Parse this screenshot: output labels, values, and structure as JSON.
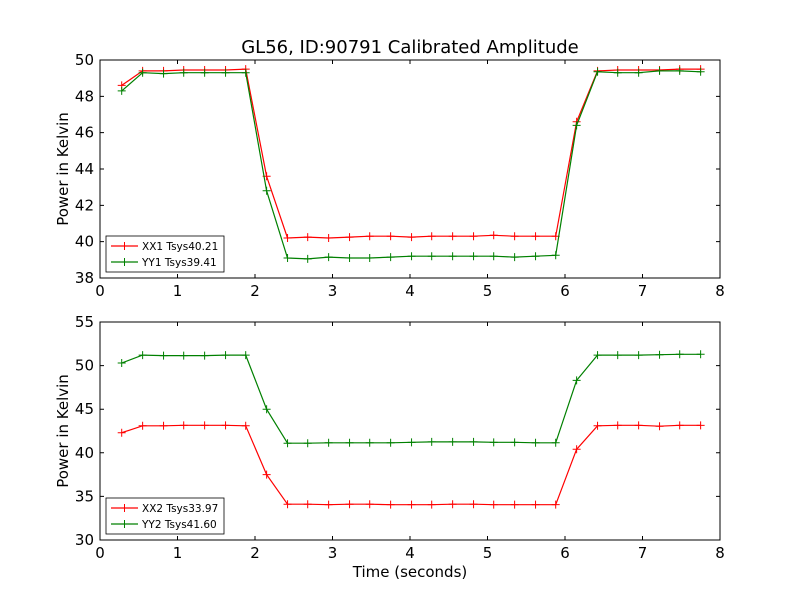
{
  "figure": {
    "title": "GL56, ID:90791 Calibrated Amplitude"
  },
  "chart_data": [
    {
      "type": "line",
      "title": "GL56, ID:90791 Calibrated Amplitude",
      "xlabel": "",
      "ylabel": "Power in Kelvin",
      "xlim": [
        0,
        8
      ],
      "ylim": [
        38,
        50
      ],
      "xticks": [
        0,
        1,
        2,
        3,
        4,
        5,
        6,
        7,
        8
      ],
      "yticks": [
        38,
        40,
        42,
        44,
        46,
        48,
        50
      ],
      "legend_position": "lower-left",
      "x": [
        0.28,
        0.55,
        0.82,
        1.08,
        1.35,
        1.62,
        1.88,
        2.15,
        2.42,
        2.68,
        2.95,
        3.22,
        3.48,
        3.75,
        4.02,
        4.28,
        4.55,
        4.82,
        5.08,
        5.35,
        5.62,
        5.88,
        6.15,
        6.42,
        6.68,
        6.95,
        7.22,
        7.48,
        7.75
      ],
      "series": [
        {
          "name": "XX1 Tsys40.21",
          "color": "#ff0000",
          "values": [
            48.6,
            49.4,
            49.4,
            49.45,
            49.45,
            49.45,
            49.5,
            43.6,
            40.2,
            40.25,
            40.2,
            40.25,
            40.3,
            40.3,
            40.25,
            40.3,
            40.3,
            40.3,
            40.35,
            40.3,
            40.3,
            40.3,
            46.6,
            49.4,
            49.45,
            49.45,
            49.45,
            49.5,
            49.5
          ]
        },
        {
          "name": "YY1 Tsys39.41",
          "color": "#008000",
          "values": [
            48.3,
            49.3,
            49.25,
            49.3,
            49.3,
            49.3,
            49.3,
            42.8,
            39.1,
            39.05,
            39.15,
            39.1,
            39.1,
            39.15,
            39.2,
            39.2,
            39.2,
            39.2,
            39.2,
            39.15,
            39.2,
            39.25,
            46.4,
            49.35,
            49.3,
            49.3,
            49.4,
            49.4,
            49.35
          ]
        }
      ]
    },
    {
      "type": "line",
      "title": "",
      "xlabel": "Time (seconds)",
      "ylabel": "Power in Kelvin",
      "xlim": [
        0,
        8
      ],
      "ylim": [
        30,
        55
      ],
      "xticks": [
        0,
        1,
        2,
        3,
        4,
        5,
        6,
        7,
        8
      ],
      "yticks": [
        30,
        35,
        40,
        45,
        50,
        55
      ],
      "legend_position": "lower-left",
      "x": [
        0.28,
        0.55,
        0.82,
        1.08,
        1.35,
        1.62,
        1.88,
        2.15,
        2.42,
        2.68,
        2.95,
        3.22,
        3.48,
        3.75,
        4.02,
        4.28,
        4.55,
        4.82,
        5.08,
        5.35,
        5.62,
        5.88,
        6.15,
        6.42,
        6.68,
        6.95,
        7.22,
        7.48,
        7.75
      ],
      "series": [
        {
          "name": "XX2 Tsys33.97",
          "color": "#ff0000",
          "values": [
            42.3,
            43.1,
            43.1,
            43.15,
            43.15,
            43.15,
            43.1,
            37.5,
            34.1,
            34.1,
            34.05,
            34.1,
            34.1,
            34.05,
            34.05,
            34.05,
            34.1,
            34.1,
            34.05,
            34.05,
            34.05,
            34.05,
            40.4,
            43.1,
            43.15,
            43.15,
            43.05,
            43.15,
            43.15
          ]
        },
        {
          "name": "YY2 Tsys41.60",
          "color": "#008000",
          "values": [
            50.3,
            51.2,
            51.15,
            51.15,
            51.15,
            51.2,
            51.2,
            45.0,
            41.1,
            41.1,
            41.15,
            41.15,
            41.15,
            41.15,
            41.2,
            41.25,
            41.25,
            41.25,
            41.2,
            41.2,
            41.15,
            41.15,
            48.3,
            51.2,
            51.2,
            51.2,
            51.25,
            51.3,
            51.3
          ]
        }
      ]
    }
  ]
}
